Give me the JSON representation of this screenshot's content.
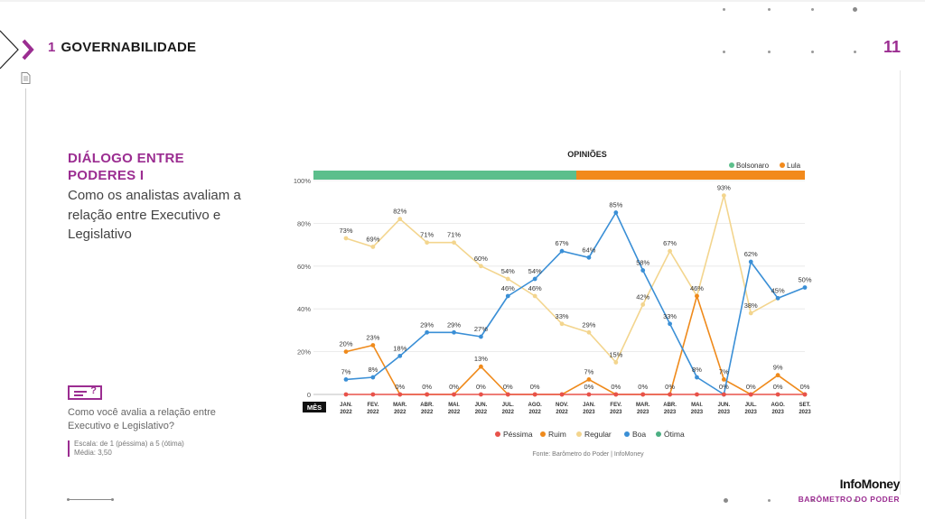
{
  "header": {
    "section_number": "1",
    "section_title": "GOVERNABILIDADE",
    "page_number": "11"
  },
  "left": {
    "title_line1": "DIÁLOGO ENTRE",
    "title_line2": "PODERES I",
    "subtitle": "Como os analistas avaliam a relação entre Executivo e Legislativo",
    "question_icon": "question-list-icon",
    "question": "Como você avalia a relação entre Executivo e Legislativo?",
    "scale_line1": "Escala: de 1 (péssima) a 5 (ótima)",
    "scale_line2": "Média: 3,50"
  },
  "brand": {
    "name": "InfoMoney",
    "tagline": "BARÔMETRO DO PODER"
  },
  "colors": {
    "accent": "#9b2d91",
    "pessima": "#e8524a",
    "ruim": "#ef8a1b",
    "regular": "#f3d58e",
    "boa": "#3a8fd6",
    "otima": "#4caf83",
    "bolsonaro": "#5cbf8c",
    "lula": "#f28a1c"
  },
  "chart_data": {
    "type": "line",
    "title": "OPINIÕES",
    "xlabel": "MÊS",
    "ylim": [
      0,
      100
    ],
    "yticks": [
      "0",
      "20%",
      "40%",
      "60%",
      "80%",
      "100%"
    ],
    "categories": [
      "JAN. 2022",
      "FEV. 2022",
      "MAR. 2022",
      "ABR. 2022",
      "MAI. 2022",
      "JUN. 2022",
      "JUL. 2022",
      "AGO. 2022",
      "NOV. 2022",
      "JAN. 2023",
      "FEV. 2023",
      "MAR. 2023",
      "ABR. 2023",
      "MAI. 2023",
      "JUN. 2023",
      "JUL. 2023",
      "AGO. 2023",
      "SET. 2023"
    ],
    "government_legend": [
      {
        "name": "Bolsonaro",
        "from": 0,
        "to": 8
      },
      {
        "name": "Lula",
        "from": 8,
        "to": 17
      }
    ],
    "series": [
      {
        "name": "Péssima",
        "values": [
          0,
          0,
          0,
          0,
          0,
          0,
          0,
          0,
          0,
          0,
          0,
          0,
          0,
          0,
          0,
          0,
          0,
          0
        ]
      },
      {
        "name": "Ruim",
        "values": [
          20,
          23,
          0,
          0,
          0,
          13,
          0,
          0,
          0,
          7,
          0,
          0,
          0,
          46,
          7,
          0,
          9,
          0
        ]
      },
      {
        "name": "Regular",
        "values": [
          73,
          69,
          82,
          71,
          71,
          60,
          54,
          46,
          33,
          29,
          15,
          42,
          67,
          46,
          93,
          38,
          45,
          null
        ]
      },
      {
        "name": "Boa",
        "values": [
          7,
          8,
          18,
          29,
          29,
          27,
          46,
          54,
          67,
          64,
          85,
          58,
          33,
          8,
          0,
          62,
          45,
          50
        ]
      },
      {
        "name": "Ótima",
        "values": [
          null,
          null,
          null,
          null,
          null,
          null,
          null,
          null,
          null,
          null,
          null,
          null,
          null,
          null,
          null,
          null,
          null,
          null
        ]
      }
    ],
    "data_labels": [
      {
        "text": "73%",
        "i": 0,
        "v": 73
      },
      {
        "text": "20%",
        "i": 0,
        "v": 20
      },
      {
        "text": "7%",
        "i": 0,
        "v": 7
      },
      {
        "text": "69%",
        "i": 1,
        "v": 69
      },
      {
        "text": "23%",
        "i": 1,
        "v": 23
      },
      {
        "text": "8%",
        "i": 1,
        "v": 8
      },
      {
        "text": "82%",
        "i": 2,
        "v": 82
      },
      {
        "text": "18%",
        "i": 2,
        "v": 18
      },
      {
        "text": "0%",
        "i": 2,
        "v": 0
      },
      {
        "text": "71%",
        "i": 3,
        "v": 71
      },
      {
        "text": "29%",
        "i": 3,
        "v": 29
      },
      {
        "text": "0%",
        "i": 3,
        "v": 0
      },
      {
        "text": "71%",
        "i": 4,
        "v": 71
      },
      {
        "text": "29%",
        "i": 4,
        "v": 29
      },
      {
        "text": "0%",
        "i": 4,
        "v": 0
      },
      {
        "text": "60%",
        "i": 5,
        "v": 60
      },
      {
        "text": "27%",
        "i": 5,
        "v": 27
      },
      {
        "text": "13%",
        "i": 5,
        "v": 13
      },
      {
        "text": "0%",
        "i": 5,
        "v": 0
      },
      {
        "text": "54%",
        "i": 6,
        "v": 54
      },
      {
        "text": "46%",
        "i": 6,
        "v": 46
      },
      {
        "text": "0%",
        "i": 6,
        "v": 0
      },
      {
        "text": "54%",
        "i": 7,
        "v": 54
      },
      {
        "text": "46%",
        "i": 7,
        "v": 46
      },
      {
        "text": "0%",
        "i": 7,
        "v": 0
      },
      {
        "text": "67%",
        "i": 8,
        "v": 67
      },
      {
        "text": "33%",
        "i": 8,
        "v": 33
      },
      {
        "text": "64%",
        "i": 9,
        "v": 64
      },
      {
        "text": "29%",
        "i": 9,
        "v": 29
      },
      {
        "text": "7%",
        "i": 9,
        "v": 7
      },
      {
        "text": "0%",
        "i": 9,
        "v": 0
      },
      {
        "text": "85%",
        "i": 10,
        "v": 85
      },
      {
        "text": "15%",
        "i": 10,
        "v": 15
      },
      {
        "text": "0%",
        "i": 10,
        "v": 0
      },
      {
        "text": "58%",
        "i": 11,
        "v": 58
      },
      {
        "text": "42%",
        "i": 11,
        "v": 42
      },
      {
        "text": "0%",
        "i": 11,
        "v": 0
      },
      {
        "text": "67%",
        "i": 12,
        "v": 67
      },
      {
        "text": "33%",
        "i": 12,
        "v": 33
      },
      {
        "text": "0%",
        "i": 12,
        "v": 0
      },
      {
        "text": "46%",
        "i": 13,
        "v": 46
      },
      {
        "text": "8%",
        "i": 13,
        "v": 8
      },
      {
        "text": "93%",
        "i": 14,
        "v": 93
      },
      {
        "text": "7%",
        "i": 14,
        "v": 7
      },
      {
        "text": "0%",
        "i": 14,
        "v": 0
      },
      {
        "text": "62%",
        "i": 15,
        "v": 62
      },
      {
        "text": "38%",
        "i": 15,
        "v": 38
      },
      {
        "text": "0%",
        "i": 15,
        "v": 0
      },
      {
        "text": "45%",
        "i": 16,
        "v": 45
      },
      {
        "text": "9%",
        "i": 16,
        "v": 9
      },
      {
        "text": "0%",
        "i": 16,
        "v": 0
      },
      {
        "text": "50%",
        "i": 17,
        "v": 50
      },
      {
        "text": "0%",
        "i": 17,
        "v": 0
      }
    ],
    "source": "Fonte: Barômetro do Poder | InfoMoney"
  }
}
